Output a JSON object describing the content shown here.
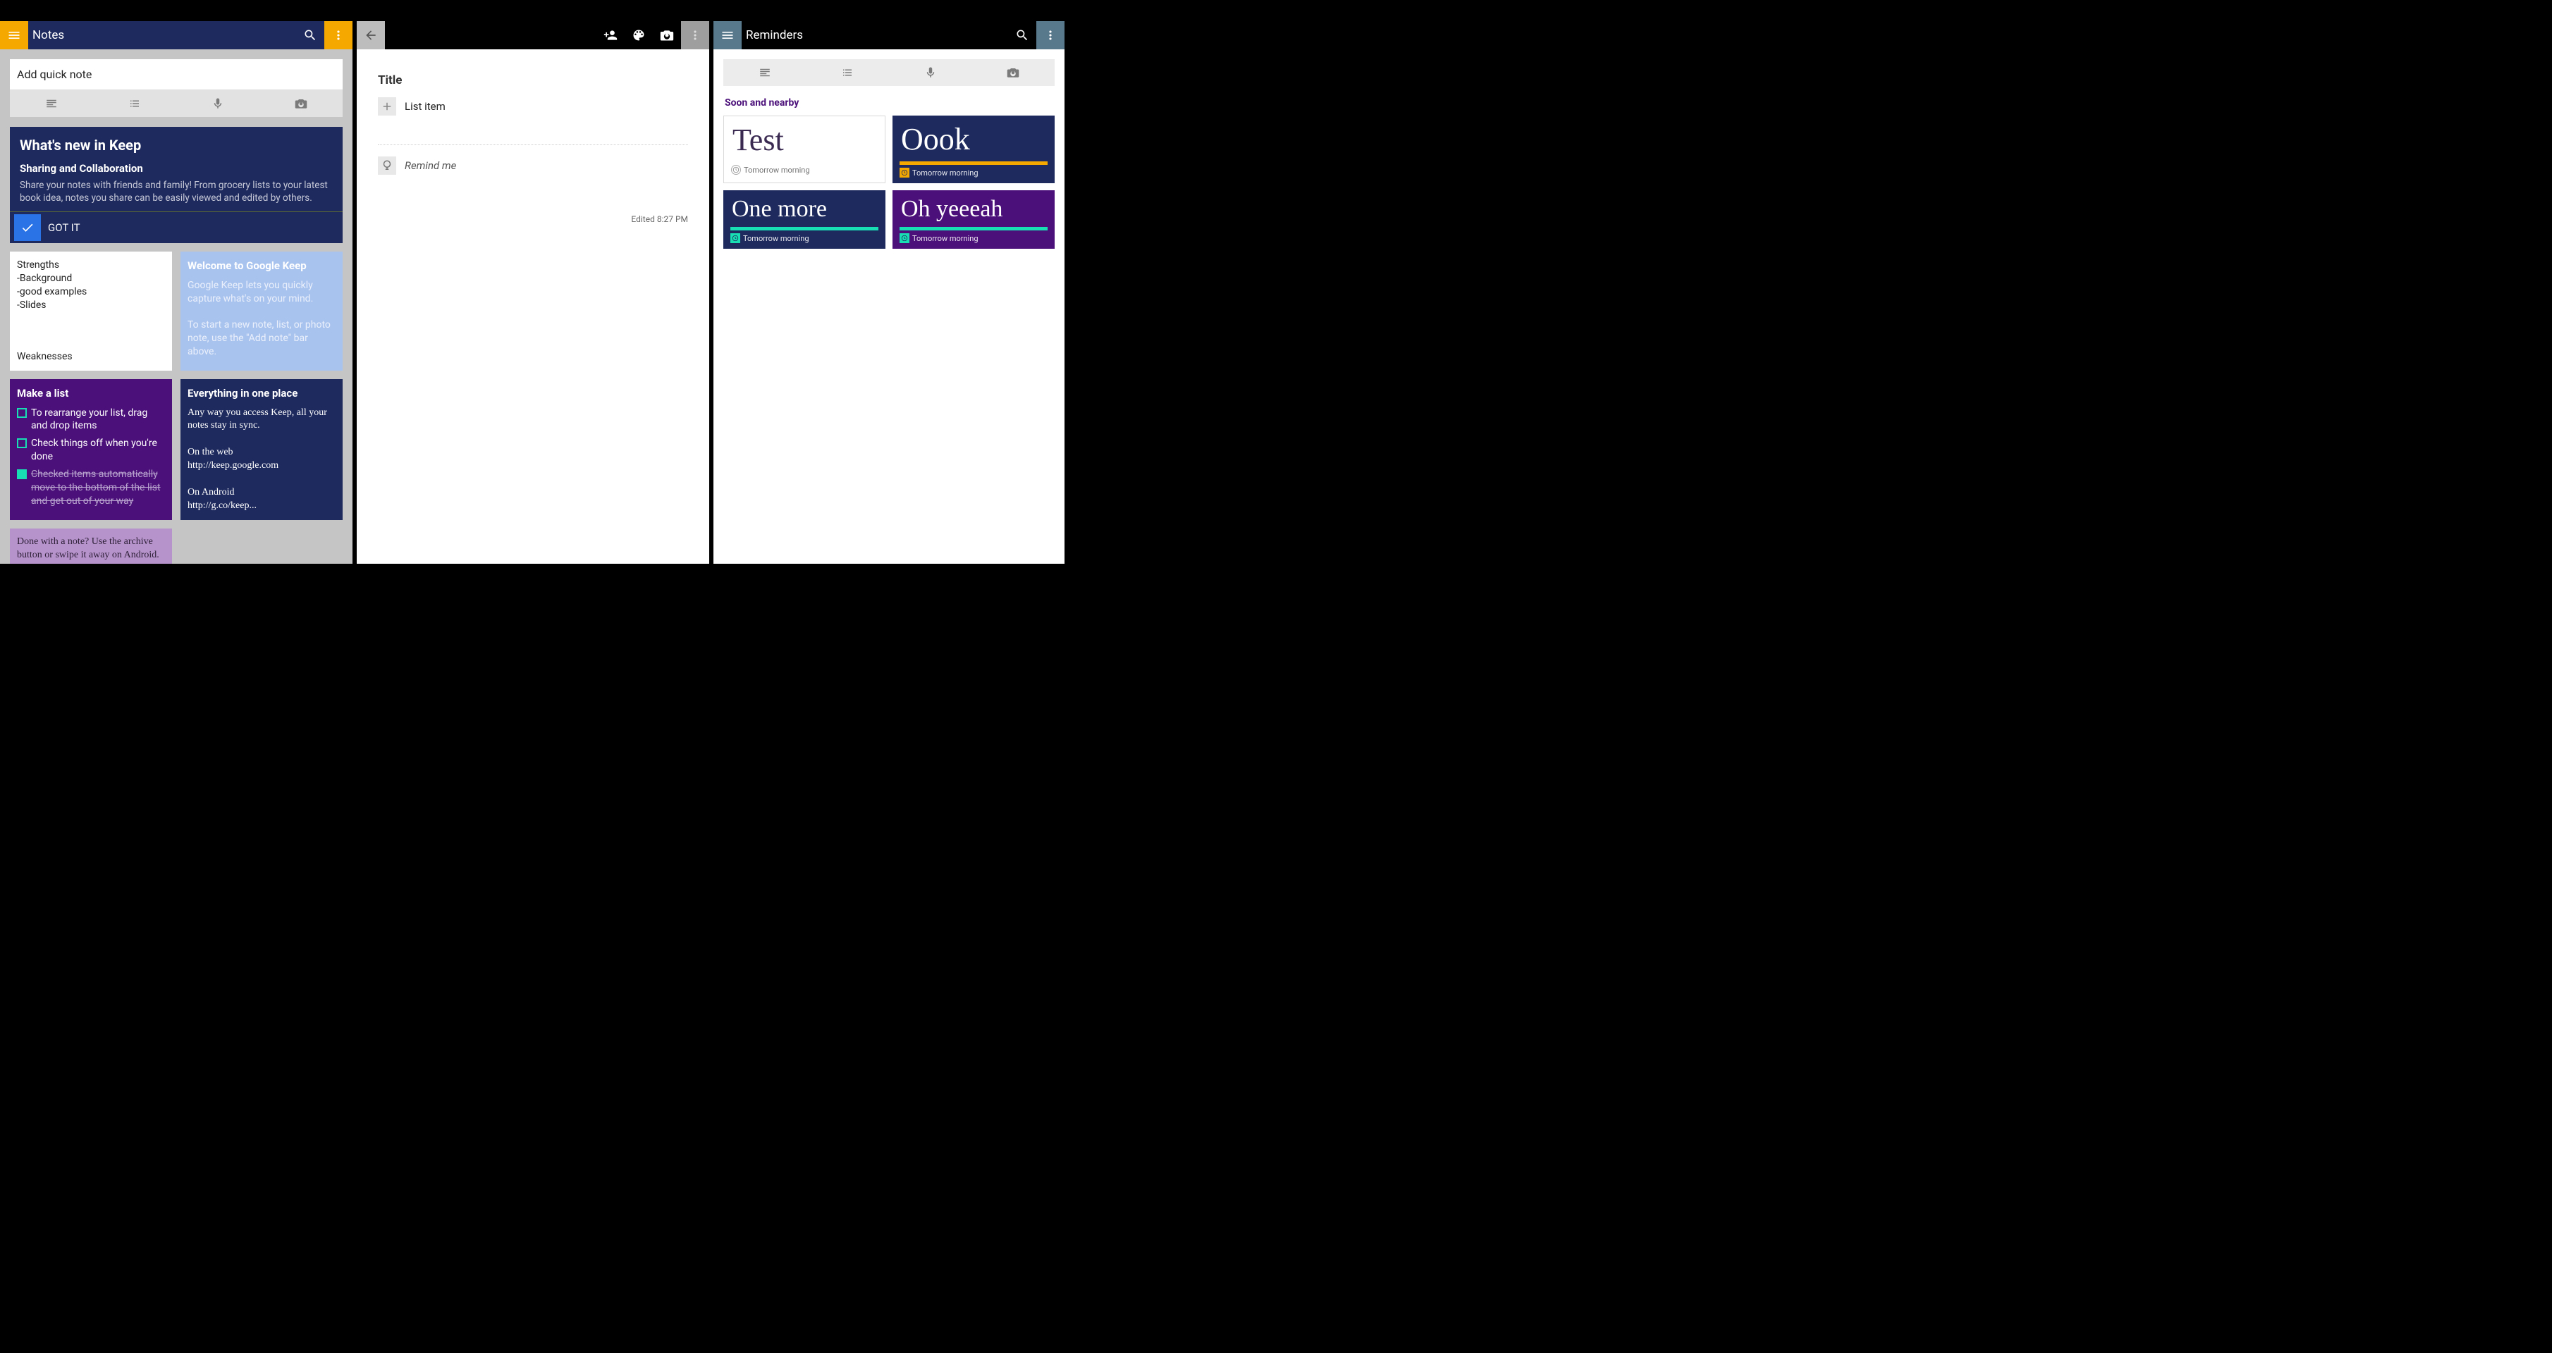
{
  "colors": {
    "navy": "#1e2a5e",
    "yellow": "#f5a800",
    "purple": "#4b1079",
    "lilac": "#b793cc",
    "lightblue": "#a9c3ef",
    "teal": "#18e0b4",
    "slate": "#58788c",
    "grey_bg": "#c5c5c5"
  },
  "left": {
    "title": "Notes",
    "quick_note_placeholder": "Add quick note",
    "promo": {
      "heading": "What's new in Keep",
      "subheading": "Sharing and Collaboration",
      "body": "Share your notes with friends and family! From grocery lists to your latest book idea, notes you share can be easily viewed and edited by others.",
      "action": "GOT IT"
    },
    "notes": {
      "strengths": {
        "lines": "Strengths\n-Background\n-good examples\n-Slides",
        "footer": "Weaknesses"
      },
      "welcome": {
        "title": "Welcome to Google Keep",
        "body": "Google Keep lets you quickly capture what's on your mind.\n\nTo start a new note, list, or photo note, use the \"Add note\" bar above."
      },
      "makelist": {
        "title": "Make a list",
        "items": [
          {
            "text": "To rearrange your list, drag and drop items",
            "checked": false
          },
          {
            "text": "Check things off when you're done",
            "checked": false
          },
          {
            "text": "Checked items automatically move to the bottom of the list and get out of your way",
            "checked": true
          }
        ]
      },
      "everything": {
        "title": "Everything in one place",
        "body": "Any way you access Keep, all your notes stay in sync.\n\nOn the web\nhttp://keep.google.com\n\nOn Android\nhttp://g.co/keep..."
      },
      "archive": {
        "body": "Done with a note? Use the archive button or swipe it away on Android.\n\nGive it a try! You can always"
      }
    }
  },
  "mid": {
    "title_placeholder": "Title",
    "list_item_placeholder": "List item",
    "remind_label": "Remind me",
    "edited": "Edited 8:27 PM"
  },
  "right": {
    "title": "Reminders",
    "section": "Soon and nearby",
    "cards": [
      {
        "text": "Test",
        "bg": "white",
        "accent": null,
        "footer": "Tomorrow morning",
        "footer_style": "grey"
      },
      {
        "text": "Oook",
        "bg": "navy",
        "accent": "orange",
        "footer": "Tomorrow morning",
        "footer_style": "orange"
      },
      {
        "text": "One more",
        "bg": "navy",
        "accent": "teal",
        "footer": "Tomorrow morning",
        "footer_style": "teal"
      },
      {
        "text": "Oh yeeeah",
        "bg": "purple",
        "accent": "teal",
        "footer": "Tomorrow morning",
        "footer_style": "teal"
      }
    ]
  }
}
